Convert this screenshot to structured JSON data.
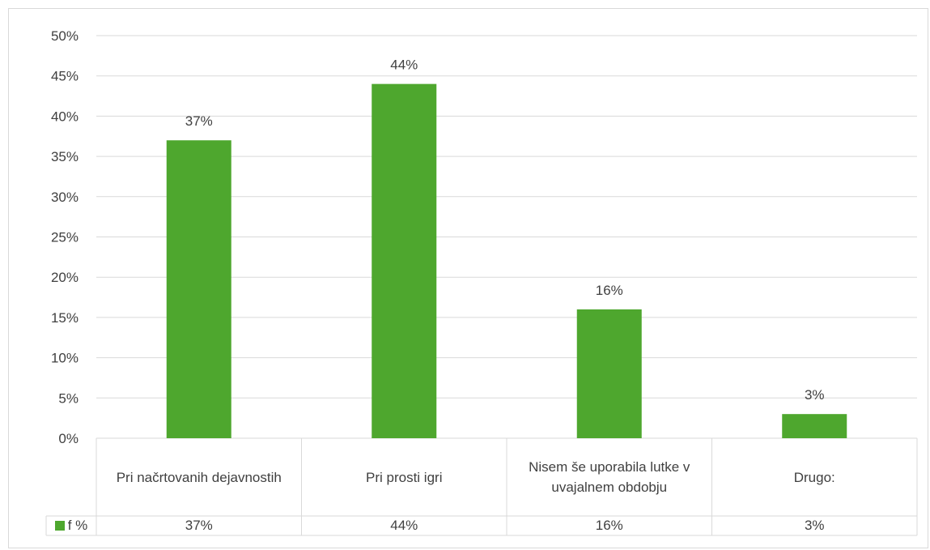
{
  "chart_data": {
    "type": "bar",
    "categories": [
      "Pri načrtovanih dejavnostih",
      "Pri prosti igri",
      "Nisem še uporabila lutke v uvajalnem obdobju",
      "Drugo:"
    ],
    "series": [
      {
        "name": "f %",
        "values": [
          37,
          44,
          16,
          3
        ],
        "color": "#4ea72e"
      }
    ],
    "data_labels": [
      "37%",
      "44%",
      "16%",
      "3%"
    ],
    "table_values": [
      "37%",
      "44%",
      "16%",
      "3%"
    ],
    "y_ticks": [
      "0%",
      "5%",
      "10%",
      "15%",
      "20%",
      "25%",
      "30%",
      "35%",
      "40%",
      "45%",
      "50%"
    ],
    "ylim": [
      0,
      50
    ],
    "grid": true,
    "legend_position": "data-table",
    "title": "",
    "xlabel": "",
    "ylabel": ""
  }
}
